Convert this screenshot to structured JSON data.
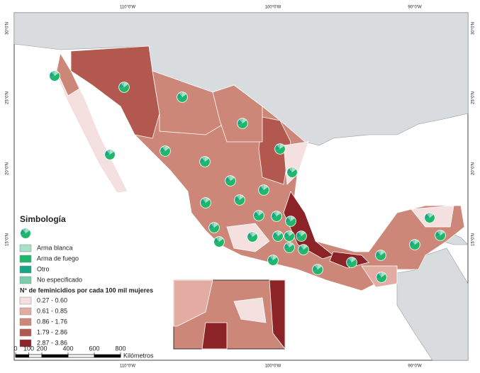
{
  "legend": {
    "title": "Simbología",
    "weapons": [
      {
        "label": "Arma blanca",
        "color": "#a8e0c8"
      },
      {
        "label": "Arma de fuego",
        "color": "#1fb86a"
      },
      {
        "label": "Otro",
        "color": "#17a787"
      },
      {
        "label": "No especificado",
        "color": "#78cfa9"
      }
    ],
    "rate_title": "N° de feminicidios por cada 100 mil mujeres",
    "classes": [
      {
        "label": "0.27 - 0.60",
        "color": "#f4e0de"
      },
      {
        "label": "0.61 - 0.85",
        "color": "#e2aca3"
      },
      {
        "label": "0.86 - 1.76",
        "color": "#cd8779"
      },
      {
        "label": "1.79 - 2.86",
        "color": "#b2584f"
      },
      {
        "label": "2.87 - 3.86",
        "color": "#8c2327"
      }
    ]
  },
  "scale": {
    "ticks": [
      0,
      100,
      200,
      400,
      600,
      800
    ],
    "unit": "Kilómetros"
  },
  "graticule": {
    "top": [
      "110°0'W",
      "100°0'W",
      "90°0'W"
    ],
    "left": [
      "30°0'N",
      "25°0'N",
      "20°0'N",
      "15°0'N"
    ]
  }
}
